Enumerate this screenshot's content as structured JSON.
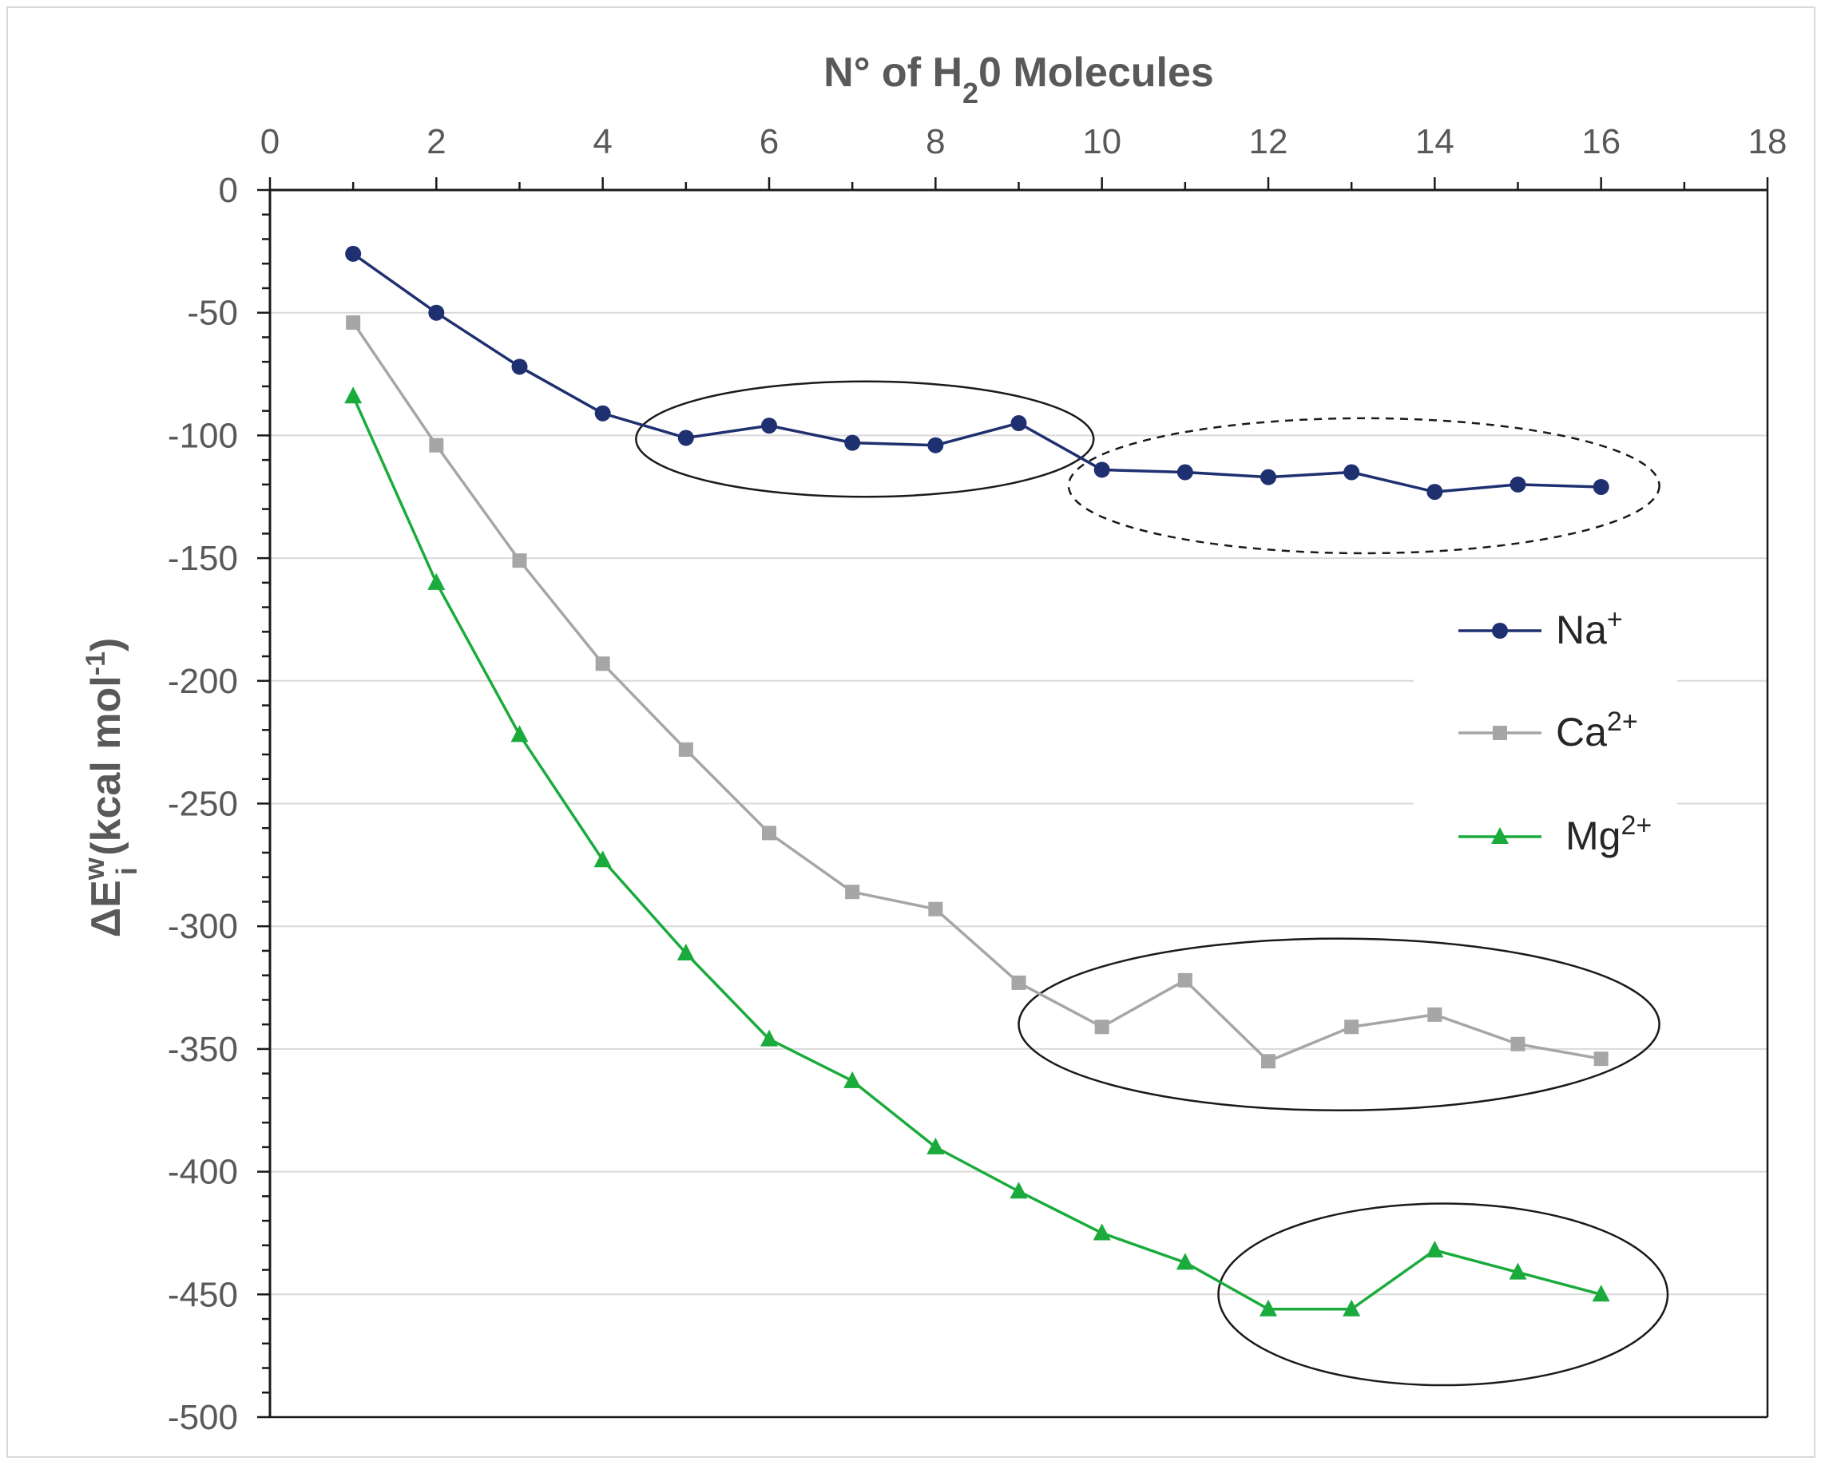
{
  "chart_data": {
    "type": "line",
    "title": "",
    "xlabel": "N° of H₂0 Molecules",
    "xlabel_parts": {
      "pre": "N° of H",
      "sub": "2",
      "post": "0 Molecules"
    },
    "ylabel": "ΔEᵢʷ (kcal mol⁻¹)",
    "ylabel_parts": {
      "pre": "ΔE",
      "sup": "w",
      "sub": "i",
      "mid": " (kcal mol",
      "sup2": "-1",
      "post": ")"
    },
    "x_axis_position": "top",
    "xlim": [
      0,
      18
    ],
    "ylim": [
      -500,
      0
    ],
    "x_ticks": [
      "0",
      "2",
      "4",
      "6",
      "8",
      "10",
      "12",
      "14",
      "16",
      "18"
    ],
    "y_ticks": [
      "0",
      "-50",
      "-100",
      "-150",
      "-200",
      "-250",
      "-300",
      "-350",
      "-400",
      "-450",
      "-500"
    ],
    "grid": true,
    "x": [
      1,
      2,
      3,
      4,
      5,
      6,
      7,
      8,
      9,
      10,
      11,
      12,
      13,
      14,
      15,
      16
    ],
    "series": [
      {
        "name": "Na⁺",
        "label_base": "Na",
        "label_sup": "+",
        "color": "#1f3070",
        "marker": "circle",
        "values": [
          -26,
          -50,
          -72,
          -91,
          -101,
          -96,
          -103,
          -104,
          -95,
          -114,
          -115,
          -117,
          -115,
          -123,
          -120,
          -121
        ]
      },
      {
        "name": "Ca²⁺",
        "label_base": "Ca",
        "label_sup": "2+",
        "color": "#a6a6a6",
        "marker": "square",
        "values": [
          -54,
          -104,
          -151,
          -193,
          -228,
          -262,
          -286,
          -293,
          -323,
          -341,
          -322,
          -355,
          -341,
          -336,
          -348,
          -354
        ]
      },
      {
        "name": "Mg²⁺",
        "label_base": "Mg",
        "label_sup": "2+",
        "color": "#1aab3c",
        "marker": "triangle",
        "values": [
          -84,
          -160,
          -222,
          -273,
          -311,
          -346,
          -363,
          -390,
          -408,
          -425,
          -437,
          -456,
          -456,
          -432,
          -441,
          -450
        ]
      }
    ],
    "legend_position": "right",
    "annotations": [
      {
        "type": "ellipse",
        "style": "solid",
        "x_range": [
          4.4,
          9.9
        ],
        "y_range": [
          -78,
          -125
        ]
      },
      {
        "type": "ellipse",
        "style": "dashed",
        "x_range": [
          9.6,
          16.7
        ],
        "y_range": [
          -93,
          -148
        ]
      },
      {
        "type": "ellipse",
        "style": "solid",
        "x_range": [
          9.0,
          16.7
        ],
        "y_range": [
          -305,
          -375
        ]
      },
      {
        "type": "ellipse",
        "style": "solid",
        "x_range": [
          11.4,
          16.8
        ],
        "y_range": [
          -413,
          -487
        ]
      }
    ]
  }
}
